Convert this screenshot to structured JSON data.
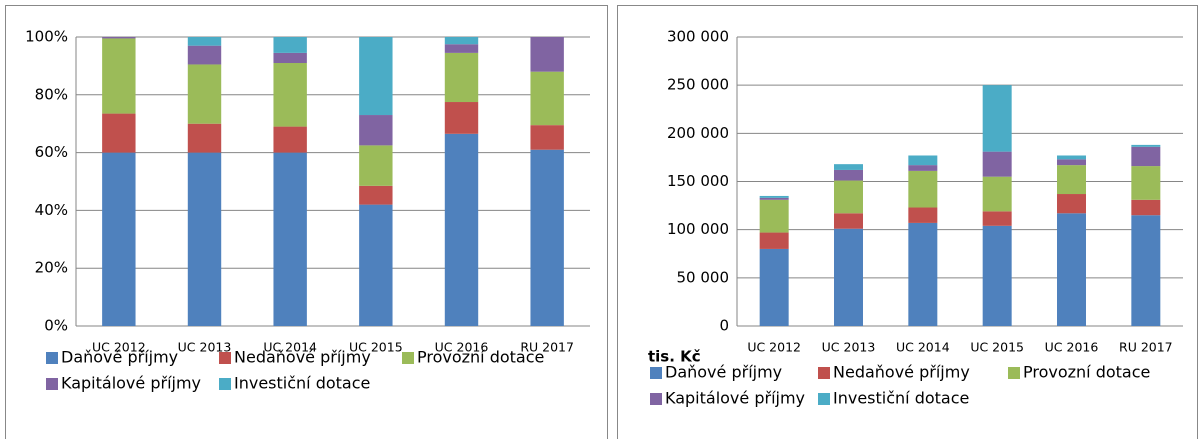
{
  "chart_data": [
    {
      "type": "stacked_bar",
      "categories": [
        "UC 2012",
        "UC 2013",
        "UC 2014",
        "UC 2015",
        "UC 2016",
        "RU 2017"
      ],
      "series": [
        {
          "name": "Daňové příjmy",
          "color": "#4f81bd",
          "values": [
            60,
            60,
            60,
            42,
            66.5,
            61
          ]
        },
        {
          "name": "Nedaňové příjmy",
          "color": "#c0504d",
          "values": [
            13.5,
            10,
            9,
            6.5,
            11,
            8.5
          ]
        },
        {
          "name": "Provozní dotace",
          "color": "#9bbb59",
          "values": [
            26,
            20.5,
            22,
            14,
            17,
            18.5
          ]
        },
        {
          "name": "Kapitálové příjmy",
          "color": "#8064a2",
          "values": [
            0.5,
            6.5,
            3.5,
            10.5,
            3,
            12
          ]
        },
        {
          "name": "Investiční dotace",
          "color": "#4bacc6",
          "values": [
            0,
            3,
            5.5,
            27,
            2.5,
            0
          ]
        }
      ],
      "ylim": [
        0,
        100
      ],
      "yticks": [
        {
          "value": 0,
          "label": "0%"
        },
        {
          "value": 20,
          "label": "20%"
        },
        {
          "value": 40,
          "label": "40%"
        },
        {
          "value": 60,
          "label": "60%"
        },
        {
          "value": 80,
          "label": "80%"
        },
        {
          "value": 100,
          "label": "100%"
        }
      ],
      "grid": true
    },
    {
      "type": "stacked_bar",
      "y_label": "tis. Kč",
      "categories": [
        "UC 2012",
        "UC 2013",
        "UC 2014",
        "UC 2015",
        "UC 2016",
        "RU 2017"
      ],
      "series": [
        {
          "name": "Daňové příjmy",
          "color": "#4f81bd",
          "values": [
            80000,
            101000,
            107000,
            104000,
            117000,
            115000
          ]
        },
        {
          "name": "Nedaňové příjmy",
          "color": "#c0504d",
          "values": [
            17000,
            16000,
            16000,
            15000,
            20000,
            16000
          ]
        },
        {
          "name": "Provozní dotace",
          "color": "#9bbb59",
          "values": [
            34000,
            34000,
            38000,
            36000,
            30000,
            35000
          ]
        },
        {
          "name": "Kapitálové příjmy",
          "color": "#8064a2",
          "values": [
            2000,
            11000,
            6000,
            26000,
            6000,
            20000
          ]
        },
        {
          "name": "Investiční dotace",
          "color": "#4bacc6",
          "values": [
            2000,
            6000,
            10000,
            69000,
            4000,
            2000
          ]
        }
      ],
      "ylim": [
        0,
        300000
      ],
      "yticks": [
        0,
        {
          "value": 50000,
          "label": "50 000"
        },
        {
          "value": 100000,
          "label": "100 000"
        },
        {
          "value": 150000,
          "label": "150 000"
        },
        {
          "value": 200000,
          "label": "200 000"
        },
        {
          "value": 250000,
          "label": "250 000"
        },
        {
          "value": 300000,
          "label": "300 000"
        }
      ],
      "grid": true
    }
  ]
}
